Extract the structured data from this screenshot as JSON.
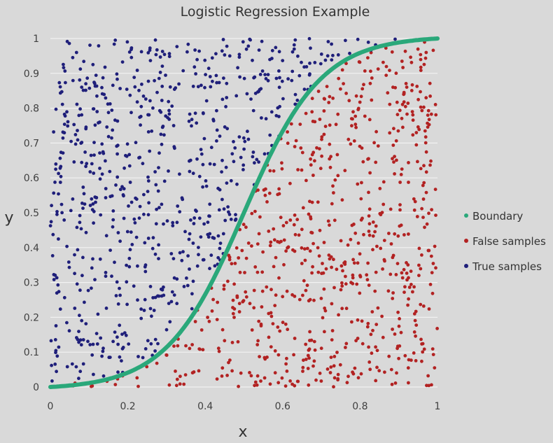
{
  "chart_data": {
    "type": "scatter",
    "title": "Logistic Regression Example",
    "xlabel": "x",
    "ylabel": "y",
    "xlim": [
      0,
      1
    ],
    "ylim": [
      0,
      1
    ],
    "x_ticks": [
      "0",
      "0.2",
      "0.4",
      "0.6",
      "0.8",
      "1"
    ],
    "y_ticks": [
      "0",
      "0.1",
      "0.2",
      "0.3",
      "0.4",
      "0.5",
      "0.6",
      "0.7",
      "0.8",
      "0.9",
      "1"
    ],
    "grid": "horizontal",
    "legend_position": "right",
    "boundary": {
      "name": "Boundary",
      "color": "#2aa87a",
      "function": "logistic",
      "midpoint": 0.5,
      "steepness": 10
    },
    "series": [
      {
        "name": "False samples",
        "color": "#b22222",
        "description_rule": "y below boundary",
        "count": 700
      },
      {
        "name": "True samples",
        "color": "#1f1f7a",
        "description_rule": "y above boundary",
        "count": 700
      }
    ],
    "colors": {
      "plot_background": "#d9d9d9",
      "gridline": "#f2f2f2"
    }
  }
}
